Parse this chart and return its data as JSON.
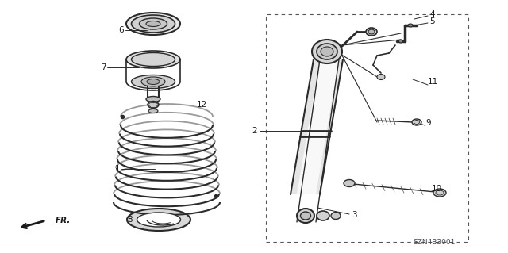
{
  "bg_color": "#ffffff",
  "line_color": "#2a2a2a",
  "text_color": "#1a1a1a",
  "footer_code": "SZN4B3001",
  "fig_w": 6.4,
  "fig_h": 3.19,
  "dpi": 100
}
